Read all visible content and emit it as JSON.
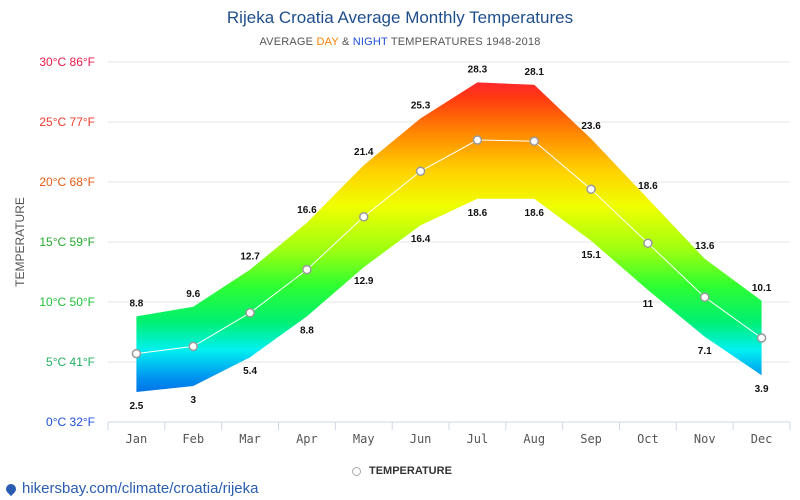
{
  "title": "Rijeka Croatia Average Monthly Temperatures",
  "subtitle": {
    "prefix": "AVERAGE ",
    "day": "DAY",
    "amp": " & ",
    "night": "NIGHT",
    "suffix": " TEMPERATURES 1948-2018"
  },
  "footer": {
    "url": "hikersbay.com/climate/croatia/rijeka",
    "icon": "map-pin-icon"
  },
  "legend": {
    "label": "TEMPERATURE"
  },
  "chart_data": {
    "type": "area",
    "categories": [
      "Jan",
      "Feb",
      "Mar",
      "Apr",
      "May",
      "Jun",
      "Jul",
      "Aug",
      "Sep",
      "Oct",
      "Nov",
      "Dec"
    ],
    "ylabel": "TEMPERATURE",
    "ylim": [
      0,
      30
    ],
    "yticks": [
      {
        "value": 30,
        "label": "30°C 86°F",
        "color": "#e8194a"
      },
      {
        "value": 25,
        "label": "25°C 77°F",
        "color": "#f03a2c"
      },
      {
        "value": 20,
        "label": "20°C 68°F",
        "color": "#e65a12"
      },
      {
        "value": 15,
        "label": "15°C 59°F",
        "color": "#22a82e"
      },
      {
        "value": 10,
        "label": "10°C 50°F",
        "color": "#1fc03a"
      },
      {
        "value": 5,
        "label": "5°C 41°F",
        "color": "#20b060"
      },
      {
        "value": 0,
        "label": "0°C 32°F",
        "color": "#1f4fd8"
      }
    ],
    "grid": true,
    "legend_position": "bottom",
    "series": [
      {
        "name": "DAY",
        "values": [
          8.8,
          9.6,
          12.7,
          16.6,
          21.4,
          25.3,
          28.3,
          28.1,
          23.6,
          18.6,
          13.6,
          10.1
        ]
      },
      {
        "name": "NIGHT",
        "values": [
          2.5,
          3,
          5.4,
          8.8,
          12.9,
          16.4,
          18.6,
          18.6,
          15.1,
          11,
          7.1,
          3.9
        ]
      },
      {
        "name": "TEMPERATURE",
        "values": [
          5.7,
          6.3,
          9.1,
          12.7,
          17.1,
          20.9,
          23.5,
          23.4,
          19.4,
          14.9,
          10.4,
          7.0
        ]
      }
    ]
  }
}
